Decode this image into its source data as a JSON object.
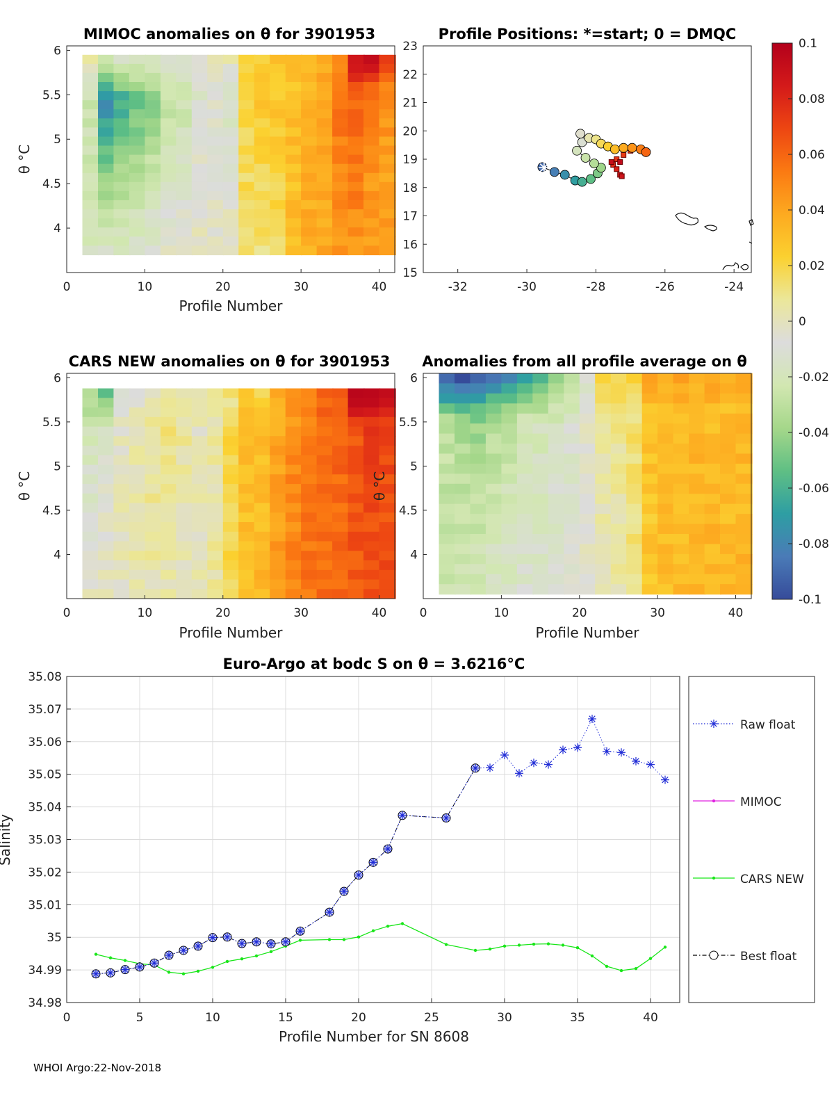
{
  "footer": "WHOI Argo:22-Nov-2018",
  "colors": {
    "raw_float": "#1f2bd6",
    "mimoc": "#e020e0",
    "cars_new": "#19e619",
    "best_float": "#000000"
  },
  "colormap": [
    "#364b9a",
    "#4a7bb7",
    "#2e9ea3",
    "#5fbf84",
    "#a5d78a",
    "#d2e7b1",
    "#dcdcdc",
    "#ebe79a",
    "#fbd130",
    "#fdaa20",
    "#fb7a12",
    "#ed4612",
    "#d41a1a",
    "#b3001b"
  ],
  "panel_mimoc": {
    "title": "MIMOC anomalies on θ  for 3901953",
    "xlabel": "Profile Number",
    "ylabel": "θ °C",
    "xticks": [
      "0",
      "10",
      "20",
      "30",
      "40"
    ],
    "yticks": [
      "4",
      "4.5",
      "5",
      "5.5",
      "6"
    ]
  },
  "panel_positions": {
    "title": "Profile Positions: *=start; 0 = DMQC",
    "xticks": [
      "-32",
      "-30",
      "-28",
      "-26",
      "-24"
    ],
    "yticks": [
      "15",
      "16",
      "17",
      "18",
      "19",
      "20",
      "21",
      "22",
      "23"
    ]
  },
  "panel_cars": {
    "title": "CARS NEW anomalies on θ for 3901953",
    "xlabel": "Profile Number",
    "ylabel": "θ °C",
    "xticks": [
      "0",
      "10",
      "20",
      "30",
      "40"
    ],
    "yticks": [
      "4",
      "4.5",
      "5",
      "5.5",
      "6"
    ]
  },
  "panel_allavg": {
    "title": "Anomalies from all profile average on θ",
    "xlabel": "Profile Number",
    "ylabel": "θ °C",
    "xticks": [
      "0",
      "10",
      "20",
      "30",
      "40"
    ],
    "yticks": [
      "4",
      "4.5",
      "5",
      "5.5",
      "6"
    ]
  },
  "colorbar": {
    "ticks": [
      "0.1",
      "0.08",
      "0.06",
      "0.04",
      "0.02",
      "0",
      "-0.02",
      "-0.04",
      "-0.06",
      "-0.08",
      "-0.1"
    ]
  },
  "legend": [
    "Raw float",
    "MIMOC",
    "CARS NEW",
    "Best float"
  ],
  "chart_data": [
    {
      "type": "heatmap",
      "id": "mimoc",
      "title": "MIMOC anomalies on θ  for 3901953",
      "xlabel": "Profile Number",
      "ylabel": "θ °C",
      "xlim": [
        0,
        42
      ],
      "ylim": [
        3.5,
        6.05
      ],
      "clim": [
        -0.1,
        0.1
      ],
      "ytop": 5.95,
      "ybot": 3.7,
      "columns": [
        {
          "x": 2,
          "top": 0.002,
          "low": -0.025,
          "bot": -0.018
        },
        {
          "x": 4,
          "top": -0.02,
          "low": -0.076,
          "bot": -0.012
        },
        {
          "x": 6,
          "top": -0.014,
          "low": -0.062,
          "bot": -0.012
        },
        {
          "x": 8,
          "top": -0.016,
          "low": -0.052,
          "bot": -0.012
        },
        {
          "x": 10,
          "top": -0.018,
          "low": -0.044,
          "bot": -0.008
        },
        {
          "x": 12,
          "top": -0.014,
          "low": -0.03,
          "bot": -0.004
        },
        {
          "x": 14,
          "top": -0.01,
          "low": -0.025,
          "bot": 0.0
        },
        {
          "x": 16,
          "top": -0.004,
          "low": -0.012,
          "bot": 0.0
        },
        {
          "x": 18,
          "top": 0.002,
          "low": -0.008,
          "bot": -0.004
        },
        {
          "x": 20,
          "top": 0.0,
          "low": -0.018,
          "bot": 0.002
        },
        {
          "x": 22,
          "top": 0.018,
          "low": 0.018,
          "bot": 0.015
        },
        {
          "x": 24,
          "top": 0.024,
          "low": 0.026,
          "bot": 0.012
        },
        {
          "x": 26,
          "top": 0.026,
          "low": 0.028,
          "bot": 0.014
        },
        {
          "x": 28,
          "top": 0.028,
          "low": 0.03,
          "bot": 0.03
        },
        {
          "x": 30,
          "top": 0.032,
          "low": 0.034,
          "bot": 0.036
        },
        {
          "x": 32,
          "top": 0.034,
          "low": 0.04,
          "bot": 0.038
        },
        {
          "x": 34,
          "top": 0.05,
          "low": 0.055,
          "bot": 0.044
        },
        {
          "x": 36,
          "top": 0.085,
          "low": 0.062,
          "bot": 0.044
        },
        {
          "x": 38,
          "top": 0.095,
          "low": 0.05,
          "bot": 0.042
        },
        {
          "x": 40,
          "top": 0.07,
          "low": 0.045,
          "bot": 0.04
        }
      ]
    },
    {
      "type": "scatter",
      "id": "positions",
      "title": "Profile Positions: *=start; 0 = DMQC",
      "xlim": [
        -33,
        -23.5
      ],
      "ylim": [
        15,
        23
      ],
      "start": {
        "lon": -29.5,
        "lat": 18.7
      },
      "points": [
        {
          "lon": -29.55,
          "lat": 18.72
        },
        {
          "lon": -29.2,
          "lat": 18.55
        },
        {
          "lon": -28.9,
          "lat": 18.45
        },
        {
          "lon": -28.6,
          "lat": 18.25
        },
        {
          "lon": -28.4,
          "lat": 18.2
        },
        {
          "lon": -28.15,
          "lat": 18.3
        },
        {
          "lon": -27.95,
          "lat": 18.5
        },
        {
          "lon": -27.85,
          "lat": 18.7
        },
        {
          "lon": -28.05,
          "lat": 18.85
        },
        {
          "lon": -28.3,
          "lat": 19.05
        },
        {
          "lon": -28.55,
          "lat": 19.3
        },
        {
          "lon": -28.4,
          "lat": 19.6
        },
        {
          "lon": -28.45,
          "lat": 19.9
        },
        {
          "lon": -28.2,
          "lat": 19.75
        },
        {
          "lon": -28.0,
          "lat": 19.7
        },
        {
          "lon": -27.85,
          "lat": 19.55
        },
        {
          "lon": -27.65,
          "lat": 19.45
        },
        {
          "lon": -27.45,
          "lat": 19.35
        },
        {
          "lon": -27.2,
          "lat": 19.4
        },
        {
          "lon": -26.95,
          "lat": 19.4
        },
        {
          "lon": -26.7,
          "lat": 19.35
        },
        {
          "lon": -26.55,
          "lat": 19.25
        }
      ],
      "nondmqc": [
        {
          "lon": -27.0,
          "lat": 19.3
        },
        {
          "lon": -27.2,
          "lat": 19.15
        },
        {
          "lon": -27.4,
          "lat": 19.0
        },
        {
          "lon": -27.5,
          "lat": 18.8
        },
        {
          "lon": -27.4,
          "lat": 18.65
        },
        {
          "lon": -27.3,
          "lat": 18.45
        },
        {
          "lon": -27.25,
          "lat": 18.4
        },
        {
          "lon": -27.55,
          "lat": 18.9
        },
        {
          "lon": -27.3,
          "lat": 18.9
        }
      ]
    },
    {
      "type": "heatmap",
      "id": "cars",
      "title": "CARS NEW anomalies on θ for 3901953",
      "xlabel": "Profile Number",
      "ylabel": "θ °C",
      "xlim": [
        0,
        42
      ],
      "ylim": [
        3.5,
        6.05
      ],
      "clim": [
        -0.1,
        0.1
      ],
      "ytop": 5.88,
      "ybot": 3.5,
      "columns": [
        {
          "x": 2,
          "top": -0.038,
          "low": -0.02,
          "bot": 0.0
        },
        {
          "x": 4,
          "top": -0.05,
          "low": -0.012,
          "bot": 0.0
        },
        {
          "x": 6,
          "top": -0.012,
          "low": 0.0,
          "bot": 0.0
        },
        {
          "x": 8,
          "top": -0.006,
          "low": 0.004,
          "bot": 0.002
        },
        {
          "x": 10,
          "top": -0.002,
          "low": 0.008,
          "bot": 0.002
        },
        {
          "x": 12,
          "top": 0.004,
          "low": 0.01,
          "bot": 0.002
        },
        {
          "x": 14,
          "top": 0.006,
          "low": 0.006,
          "bot": 0.0
        },
        {
          "x": 16,
          "top": 0.004,
          "low": 0.0,
          "bot": 0.002
        },
        {
          "x": 18,
          "top": 0.008,
          "low": 0.004,
          "bot": 0.006
        },
        {
          "x": 20,
          "top": 0.01,
          "low": 0.02,
          "bot": 0.018
        },
        {
          "x": 22,
          "top": 0.024,
          "low": 0.03,
          "bot": 0.03
        },
        {
          "x": 24,
          "top": 0.02,
          "low": 0.03,
          "bot": 0.034
        },
        {
          "x": 26,
          "top": 0.034,
          "low": 0.04,
          "bot": 0.044
        },
        {
          "x": 28,
          "top": 0.042,
          "low": 0.048,
          "bot": 0.05
        },
        {
          "x": 30,
          "top": 0.05,
          "low": 0.052,
          "bot": 0.055
        },
        {
          "x": 32,
          "top": 0.058,
          "low": 0.058,
          "bot": 0.058
        },
        {
          "x": 34,
          "top": 0.065,
          "low": 0.058,
          "bot": 0.06
        },
        {
          "x": 36,
          "top": 0.095,
          "low": 0.066,
          "bot": 0.064
        },
        {
          "x": 38,
          "top": 0.098,
          "low": 0.07,
          "bot": 0.066
        },
        {
          "x": 40,
          "top": 0.09,
          "low": 0.068,
          "bot": 0.066
        }
      ]
    },
    {
      "type": "heatmap",
      "id": "allavg",
      "title": "Anomalies from all profile average on θ",
      "xlabel": "Profile Number",
      "ylabel": "θ °C",
      "xlim": [
        0,
        42
      ],
      "ylim": [
        3.5,
        6.05
      ],
      "clim": [
        -0.1,
        0.1
      ],
      "ytop": 6.05,
      "ybot": 3.55,
      "columns": [
        {
          "x": 2,
          "top": -0.095,
          "low": -0.03,
          "bot": -0.024
        },
        {
          "x": 4,
          "top": -0.098,
          "low": -0.036,
          "bot": -0.022
        },
        {
          "x": 6,
          "top": -0.092,
          "low": -0.04,
          "bot": -0.018
        },
        {
          "x": 8,
          "top": -0.085,
          "low": -0.032,
          "bot": -0.016
        },
        {
          "x": 10,
          "top": -0.08,
          "low": -0.028,
          "bot": -0.014
        },
        {
          "x": 12,
          "top": -0.07,
          "low": -0.022,
          "bot": -0.012
        },
        {
          "x": 14,
          "top": -0.055,
          "low": -0.02,
          "bot": -0.012
        },
        {
          "x": 16,
          "top": -0.04,
          "low": -0.018,
          "bot": -0.01
        },
        {
          "x": 18,
          "top": -0.03,
          "low": -0.014,
          "bot": -0.008
        },
        {
          "x": 20,
          "top": -0.012,
          "low": -0.004,
          "bot": -0.004
        },
        {
          "x": 22,
          "top": 0.018,
          "low": 0.004,
          "bot": 0.002
        },
        {
          "x": 24,
          "top": 0.02,
          "low": 0.008,
          "bot": 0.004
        },
        {
          "x": 26,
          "top": 0.018,
          "low": 0.014,
          "bot": 0.01
        },
        {
          "x": 28,
          "top": 0.038,
          "low": 0.028,
          "bot": 0.026
        },
        {
          "x": 30,
          "top": 0.036,
          "low": 0.03,
          "bot": 0.03
        },
        {
          "x": 32,
          "top": 0.038,
          "low": 0.03,
          "bot": 0.032
        },
        {
          "x": 34,
          "top": 0.036,
          "low": 0.032,
          "bot": 0.034
        },
        {
          "x": 36,
          "top": 0.036,
          "low": 0.032,
          "bot": 0.034
        },
        {
          "x": 38,
          "top": 0.036,
          "low": 0.03,
          "bot": 0.034
        },
        {
          "x": 40,
          "top": 0.036,
          "low": 0.032,
          "bot": 0.034
        }
      ]
    },
    {
      "type": "line",
      "id": "salinity",
      "title": "Euro-Argo at bodc S on θ = 3.6216°C",
      "xlabel": "Profile Number for SN 8608",
      "ylabel": "Salinity",
      "xlim": [
        0,
        42
      ],
      "ylim": [
        34.98,
        35.08
      ],
      "xticks": [
        "0",
        "5",
        "10",
        "15",
        "20",
        "25",
        "30",
        "35",
        "40"
      ],
      "yticks": [
        "34.98",
        "34.99",
        "35",
        "35.01",
        "35.02",
        "35.03",
        "35.04",
        "35.05",
        "35.06",
        "35.07",
        "35.08"
      ],
      "series": [
        {
          "name": "Raw float",
          "x": [
            2,
            3,
            4,
            5,
            6,
            7,
            8,
            9,
            10,
            11,
            12,
            13,
            14,
            15,
            16,
            18,
            19,
            20,
            21,
            22,
            23,
            26,
            28,
            29,
            30,
            31,
            32,
            33,
            34,
            35,
            36,
            37,
            38,
            39,
            40,
            41
          ],
          "values": [
            34.9888,
            34.9891,
            34.9901,
            34.9909,
            34.9921,
            34.9945,
            34.996,
            34.9973,
            34.9999,
            35.0001,
            34.9981,
            34.9986,
            34.998,
            34.9986,
            35.0019,
            35.0077,
            35.0141,
            35.0191,
            35.023,
            35.0271,
            35.0374,
            35.0366,
            35.0519,
            35.052,
            35.0559,
            35.0503,
            35.0535,
            35.053,
            35.0575,
            35.0582,
            35.067,
            35.057,
            35.0567,
            35.054,
            35.053,
            35.0483
          ]
        },
        {
          "name": "MIMOC",
          "x": [],
          "values": []
        },
        {
          "name": "CARS NEW",
          "x": [
            2,
            3,
            4,
            5,
            6,
            7,
            8,
            9,
            10,
            11,
            12,
            13,
            14,
            15,
            16,
            18,
            19,
            20,
            21,
            22,
            23,
            26,
            28,
            29,
            30,
            31,
            32,
            33,
            34,
            35,
            36,
            37,
            38,
            39,
            40,
            41
          ],
          "values": [
            34.9948,
            34.9937,
            34.9929,
            34.9919,
            34.9915,
            34.9893,
            34.9888,
            34.9896,
            34.9908,
            34.9926,
            34.9934,
            34.9943,
            34.9956,
            34.9973,
            34.9991,
            34.9993,
            34.9993,
            35.0001,
            35.002,
            35.0034,
            35.0042,
            34.9978,
            34.996,
            34.9964,
            34.9973,
            34.9976,
            34.9979,
            34.998,
            34.9976,
            34.9968,
            34.9943,
            34.9911,
            34.9898,
            34.9904,
            34.9935,
            34.997
          ]
        },
        {
          "name": "Best float",
          "x": [
            2,
            3,
            4,
            5,
            6,
            7,
            8,
            9,
            10,
            11,
            12,
            13,
            14,
            15,
            16,
            18,
            19,
            20,
            21,
            22,
            23,
            26,
            28
          ],
          "values": [
            34.9888,
            34.9891,
            34.9901,
            34.9909,
            34.9921,
            34.9945,
            34.996,
            34.9973,
            34.9999,
            35.0001,
            34.9981,
            34.9986,
            34.998,
            34.9986,
            35.0019,
            35.0077,
            35.0141,
            35.0191,
            35.023,
            35.0271,
            35.0374,
            35.0366,
            35.0519
          ]
        }
      ]
    }
  ]
}
